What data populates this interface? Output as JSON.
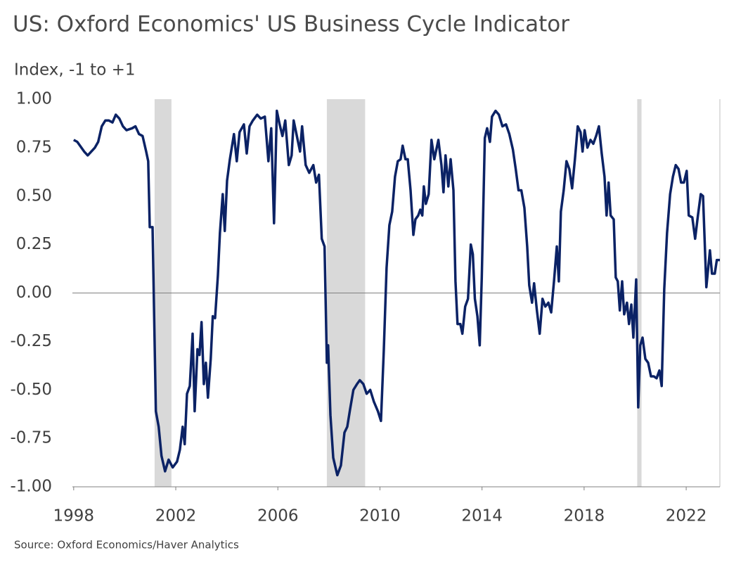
{
  "chart_data": {
    "type": "line",
    "title": "US: Oxford Economics' US Business Cycle Indicator",
    "ylabel": "Index, -1 to +1",
    "source": "Source: Oxford Economics/Haver Analytics",
    "color": "#0b2265",
    "shade_color": "#d9d9d9",
    "recessions": [
      [
        2001.17,
        2001.83
      ],
      [
        2007.92,
        2009.42
      ],
      [
        2020.08,
        2020.25
      ]
    ],
    "x": [
      1998.0,
      1998.14,
      1998.41,
      1998.55,
      1998.69,
      1998.83,
      1998.96,
      1999.1,
      1999.24,
      1999.38,
      1999.52,
      1999.65,
      1999.79,
      1999.93,
      2000.07,
      2000.29,
      2000.42,
      2000.56,
      2000.7,
      2000.84,
      2000.92,
      2000.98,
      2001.09,
      2001.22,
      2001.33,
      2001.44,
      2001.58,
      2001.72,
      2001.88,
      2002.05,
      2002.16,
      2002.27,
      2002.35,
      2002.44,
      2002.55,
      2002.66,
      2002.74,
      2002.85,
      2002.93,
      2003.01,
      2003.1,
      2003.18,
      2003.26,
      2003.37,
      2003.45,
      2003.54,
      2003.65,
      2003.73,
      2003.84,
      2003.92,
      2004.01,
      2004.12,
      2004.28,
      2004.39,
      2004.5,
      2004.67,
      2004.78,
      2004.89,
      2005.02,
      2005.19,
      2005.33,
      2005.49,
      2005.63,
      2005.74,
      2005.85,
      2005.96,
      2006.07,
      2006.18,
      2006.29,
      2006.43,
      2006.54,
      2006.62,
      2006.76,
      2006.87,
      2006.95,
      2007.09,
      2007.23,
      2007.39,
      2007.5,
      2007.61,
      2007.72,
      2007.83,
      2007.92,
      2007.97,
      2008.06,
      2008.17,
      2008.33,
      2008.47,
      2008.61,
      2008.72,
      2008.83,
      2008.96,
      2009.1,
      2009.21,
      2009.35,
      2009.48,
      2009.62,
      2009.76,
      2009.92,
      2010.04,
      2010.15,
      2010.26,
      2010.37,
      2010.48,
      2010.59,
      2010.7,
      2010.81,
      2010.89,
      2011.0,
      2011.09,
      2011.2,
      2011.31,
      2011.39,
      2011.5,
      2011.58,
      2011.66,
      2011.72,
      2011.8,
      2011.91,
      2012.02,
      2012.13,
      2012.29,
      2012.41,
      2012.49,
      2012.57,
      2012.68,
      2012.77,
      2012.88,
      2012.96,
      2013.04,
      2013.15,
      2013.23,
      2013.34,
      2013.45,
      2013.56,
      2013.64,
      2013.72,
      2013.82,
      2013.91,
      2013.99,
      2014.11,
      2014.2,
      2014.31,
      2014.39,
      2014.53,
      2014.66,
      2014.8,
      2014.94,
      2015.07,
      2015.21,
      2015.32,
      2015.43,
      2015.54,
      2015.66,
      2015.77,
      2015.85,
      2015.96,
      2016.04,
      2016.15,
      2016.26,
      2016.37,
      2016.48,
      2016.6,
      2016.71,
      2016.82,
      2016.93,
      2017.01,
      2017.09,
      2017.2,
      2017.31,
      2017.42,
      2017.53,
      2017.64,
      2017.75,
      2017.86,
      2017.94,
      2018.02,
      2018.13,
      2018.25,
      2018.36,
      2018.47,
      2018.58,
      2018.69,
      2018.8,
      2018.88,
      2018.96,
      2019.04,
      2019.16,
      2019.24,
      2019.32,
      2019.4,
      2019.49,
      2019.57,
      2019.68,
      2019.76,
      2019.85,
      2019.93,
      2020.04,
      2020.12,
      2020.2,
      2020.29,
      2020.4,
      2020.51,
      2020.62,
      2020.73,
      2020.84,
      2020.95,
      2021.04,
      2021.14,
      2021.25,
      2021.37,
      2021.48,
      2021.59,
      2021.7,
      2021.8,
      2021.91,
      2022.02,
      2022.1,
      2022.24,
      2022.35,
      2022.46,
      2022.57,
      2022.66,
      2022.79,
      2022.93,
      2023.01,
      2023.12,
      2023.2,
      2023.32
    ],
    "values": [
      0.79,
      0.78,
      0.73,
      0.71,
      0.73,
      0.75,
      0.78,
      0.86,
      0.89,
      0.89,
      0.88,
      0.92,
      0.9,
      0.86,
      0.84,
      0.85,
      0.86,
      0.82,
      0.81,
      0.73,
      0.68,
      0.34,
      0.34,
      -0.61,
      -0.69,
      -0.84,
      -0.92,
      -0.86,
      -0.9,
      -0.87,
      -0.81,
      -0.69,
      -0.78,
      -0.52,
      -0.48,
      -0.21,
      -0.61,
      -0.29,
      -0.32,
      -0.15,
      -0.47,
      -0.36,
      -0.54,
      -0.34,
      -0.12,
      -0.13,
      0.09,
      0.31,
      0.51,
      0.32,
      0.58,
      0.69,
      0.82,
      0.68,
      0.83,
      0.87,
      0.72,
      0.86,
      0.89,
      0.92,
      0.9,
      0.91,
      0.68,
      0.85,
      0.36,
      0.94,
      0.87,
      0.81,
      0.89,
      0.66,
      0.71,
      0.89,
      0.8,
      0.73,
      0.86,
      0.66,
      0.62,
      0.66,
      0.57,
      0.61,
      0.28,
      0.24,
      -0.36,
      -0.27,
      -0.63,
      -0.85,
      -0.94,
      -0.89,
      -0.72,
      -0.69,
      -0.6,
      -0.5,
      -0.47,
      -0.45,
      -0.47,
      -0.52,
      -0.5,
      -0.56,
      -0.61,
      -0.66,
      -0.3,
      0.13,
      0.35,
      0.42,
      0.6,
      0.68,
      0.69,
      0.76,
      0.69,
      0.69,
      0.53,
      0.3,
      0.38,
      0.4,
      0.43,
      0.4,
      0.55,
      0.46,
      0.51,
      0.79,
      0.69,
      0.79,
      0.66,
      0.52,
      0.71,
      0.55,
      0.69,
      0.53,
      0.06,
      -0.16,
      -0.16,
      -0.21,
      -0.07,
      -0.03,
      0.25,
      0.2,
      -0.03,
      -0.12,
      -0.27,
      0.08,
      0.8,
      0.85,
      0.78,
      0.91,
      0.94,
      0.92,
      0.86,
      0.87,
      0.82,
      0.74,
      0.64,
      0.53,
      0.53,
      0.44,
      0.24,
      0.04,
      -0.05,
      0.05,
      -0.09,
      -0.21,
      -0.03,
      -0.07,
      -0.05,
      -0.1,
      0.06,
      0.24,
      0.06,
      0.42,
      0.53,
      0.68,
      0.64,
      0.54,
      0.69,
      0.86,
      0.83,
      0.73,
      0.84,
      0.75,
      0.79,
      0.77,
      0.81,
      0.86,
      0.72,
      0.6,
      0.4,
      0.57,
      0.4,
      0.38,
      0.08,
      0.06,
      -0.09,
      0.06,
      -0.11,
      -0.05,
      -0.16,
      -0.06,
      -0.23,
      0.07,
      -0.59,
      -0.27,
      -0.23,
      -0.34,
      -0.36,
      -0.43,
      -0.43,
      -0.44,
      -0.4,
      -0.48,
      0.02,
      0.31,
      0.51,
      0.6,
      0.66,
      0.64,
      0.57,
      0.57,
      0.63,
      0.4,
      0.39,
      0.28,
      0.4,
      0.51,
      0.5,
      0.03,
      0.22,
      0.1,
      0.1,
      0.17,
      0.17
    ],
    "xlim": [
      1997.95,
      2023.32
    ],
    "ylim": [
      -1,
      1
    ],
    "xticks": [
      1998,
      2002,
      2006,
      2010,
      2014,
      2018,
      2022
    ],
    "yticks": [
      {
        "value": 1,
        "label": "1.00"
      },
      {
        "value": 0.75,
        "label": "0.75"
      },
      {
        "value": 0.5,
        "label": "0.50"
      },
      {
        "value": 0.25,
        "label": "0.25"
      },
      {
        "value": 0,
        "label": "0.00"
      },
      {
        "value": -0.25,
        "label": "-0.25"
      },
      {
        "value": -0.5,
        "label": "-0.50"
      },
      {
        "value": -0.75,
        "label": "-0.75"
      },
      {
        "value": -1,
        "label": "-1.00"
      }
    ]
  }
}
